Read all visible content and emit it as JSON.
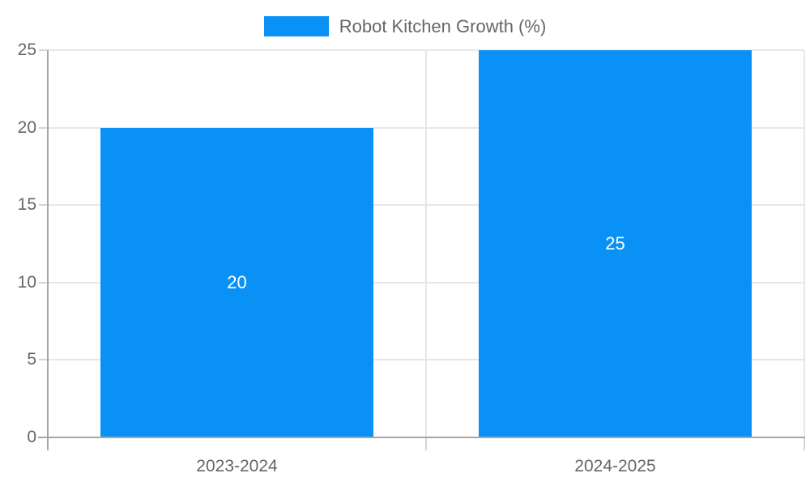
{
  "chart_data": {
    "type": "bar",
    "title": "Robot Kitchen Growth (%)",
    "categories": [
      "2023-2024",
      "2024-2025"
    ],
    "values": [
      20,
      25
    ],
    "data_labels": [
      "20",
      "25"
    ],
    "xlabel": "",
    "ylabel": "",
    "ylim": [
      0,
      25
    ],
    "yticks": [
      0,
      5,
      10,
      15,
      20,
      25
    ],
    "grid": true,
    "legend": {
      "position": "top-center",
      "entries": [
        "Robot Kitchen Growth (%)"
      ]
    },
    "colors": {
      "bar": "#0a91f5",
      "bar_label_text": "#ffffff",
      "axis_text": "#666666",
      "legend_text": "#666666",
      "gridline": "#e7e7e7",
      "tick": "#d4d4d4",
      "axis_line": "#a6a6a6",
      "background": "#ffffff"
    }
  }
}
